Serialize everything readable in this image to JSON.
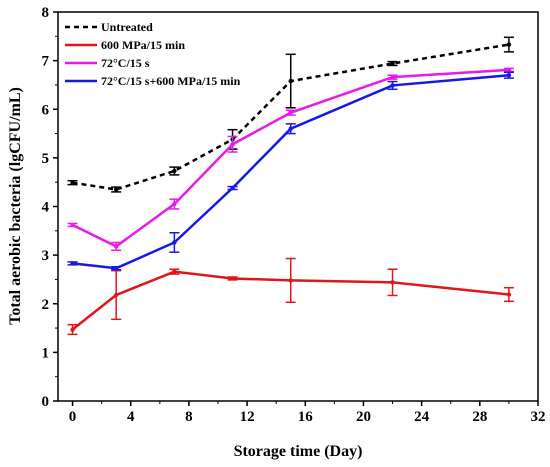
{
  "chart_data": {
    "type": "line",
    "title": "",
    "xlabel": "Storage time (Day)",
    "ylabel": "Total aerobic bacteria (lgCFU/mL)",
    "xlim": [
      -1,
      32
    ],
    "ylim": [
      0,
      8
    ],
    "xticks": [
      0,
      4,
      8,
      12,
      16,
      20,
      24,
      28,
      32
    ],
    "yticks": [
      0,
      1,
      2,
      3,
      4,
      5,
      6,
      7,
      8
    ],
    "grid": false,
    "legend_position": "top-left",
    "x": [
      0,
      3,
      7,
      11,
      15,
      22,
      30
    ],
    "series": [
      {
        "name": "Untreated",
        "color": "#000000",
        "line_style": "dashed",
        "values": [
          4.49,
          4.35,
          4.73,
          5.38,
          6.58,
          6.94,
          7.33
        ],
        "errors": [
          0.04,
          0.05,
          0.08,
          0.2,
          0.55,
          0.04,
          0.15
        ]
      },
      {
        "name": "600 MPa/15 min",
        "color": "#e0161b",
        "line_style": "solid",
        "values": [
          1.47,
          2.18,
          2.66,
          2.52,
          2.48,
          2.44,
          2.19
        ],
        "errors": [
          0.1,
          0.5,
          0.05,
          0.03,
          0.45,
          0.27,
          0.14
        ]
      },
      {
        "name": "72°C/15 s",
        "color": "#ea18ea",
        "line_style": "solid",
        "values": [
          3.62,
          3.18,
          4.05,
          5.28,
          5.93,
          6.66,
          6.81
        ],
        "errors": [
          0.03,
          0.08,
          0.1,
          0.16,
          0.05,
          0.04,
          0.03
        ]
      },
      {
        "name": "72°C/15 s+600 MPa/15 min",
        "color": "#1717e6",
        "line_style": "solid",
        "values": [
          2.83,
          2.73,
          3.26,
          4.38,
          5.6,
          6.49,
          6.7
        ],
        "errors": [
          0.03,
          0.03,
          0.2,
          0.03,
          0.1,
          0.08,
          0.06
        ]
      }
    ]
  }
}
